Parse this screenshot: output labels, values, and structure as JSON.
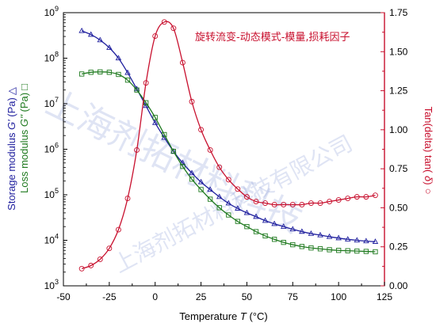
{
  "chart_data": {
    "type": "line",
    "annotation": "旋转流变-动态模式-模量,损耗因子",
    "xlabel": {
      "pre": "Temperature  ",
      "var": "T",
      "post": " (°C)"
    },
    "ylabel_left_storage": {
      "pre": "Storage modulus ",
      "var": "G'",
      "post": " (Pa)",
      "marker": "△"
    },
    "ylabel_left_loss": {
      "pre": "Loss modulus ",
      "var": "G''",
      "post": " (Pa)",
      "marker": "□"
    },
    "ylabel_right": {
      "pre": "Tan(delta) tan( ",
      "var": "δ",
      "post": ")",
      "marker": "○"
    },
    "xlim": [
      -50,
      125
    ],
    "ylim_left_log10": [
      3,
      9
    ],
    "ylim_right": [
      0,
      1.75
    ],
    "x_ticks": [
      "-50",
      "-25",
      "0",
      "25",
      "50",
      "75",
      "100",
      "125"
    ],
    "y_left_ticks": [
      {
        "base": "10",
        "exp": "3"
      },
      {
        "base": "10",
        "exp": "4"
      },
      {
        "base": "10",
        "exp": "5"
      },
      {
        "base": "10",
        "exp": "6"
      },
      {
        "base": "10",
        "exp": "7"
      },
      {
        "base": "10",
        "exp": "8"
      },
      {
        "base": "10",
        "exp": "9"
      }
    ],
    "y_right_ticks": [
      "0.00",
      "0.25",
      "0.50",
      "0.75",
      "1.00",
      "1.25",
      "1.50",
      "1.75"
    ],
    "grid": false,
    "colors": {
      "storage": "#1f1f9e",
      "loss": "#1f7a1f",
      "tan": "#c8102e",
      "axis_right": "#c8102e"
    },
    "series": [
      {
        "key": "storage",
        "axis": "left-log",
        "marker": "triangle",
        "x": [
          -40,
          -35,
          -30,
          -25,
          -20,
          -15,
          -10,
          -5,
          0,
          5,
          10,
          15,
          20,
          25,
          30,
          35,
          40,
          45,
          50,
          55,
          60,
          65,
          70,
          75,
          80,
          85,
          90,
          95,
          100,
          105,
          110,
          115,
          120
        ],
        "y": [
          398000000.0,
          330000000.0,
          250000000.0,
          170000000.0,
          100000000.0,
          48000000.0,
          21000000.0,
          9000000.0,
          3800000.0,
          1800000.0,
          900000.0,
          500000.0,
          300000.0,
          190000.0,
          130000.0,
          90000.0,
          65000.0,
          50000.0,
          40000.0,
          33000.0,
          27000.0,
          23000.0,
          20000.0,
          17500.0,
          15500.0,
          14000.0,
          13000.0,
          12000.0,
          11200.0,
          10500.0,
          10000.0,
          9600.0,
          9300.0
        ]
      },
      {
        "key": "loss",
        "axis": "left-log",
        "marker": "square",
        "x": [
          -40,
          -35,
          -30,
          -25,
          -20,
          -15,
          -10,
          -5,
          0,
          5,
          10,
          15,
          20,
          25,
          30,
          35,
          40,
          45,
          50,
          55,
          60,
          65,
          70,
          75,
          80,
          85,
          90,
          95,
          100,
          105,
          110,
          115,
          120
        ],
        "y": [
          45000000.0,
          49000000.0,
          50000000.0,
          49000000.0,
          44000000.0,
          33000000.0,
          20000000.0,
          10500000.0,
          5000000.0,
          2100000.0,
          900000.0,
          420000.0,
          220000.0,
          130000.0,
          80000.0,
          52000.0,
          36000.0,
          26000.0,
          20000.0,
          15500.0,
          12500.0,
          10500.0,
          9000.0,
          8000.0,
          7300.0,
          6800.0,
          6500.0,
          6200.0,
          6000.0,
          5900.0,
          5800.0,
          5700.0,
          5600.0
        ]
      },
      {
        "key": "tan",
        "axis": "right",
        "marker": "circle",
        "x": [
          -40,
          -35,
          -30,
          -25,
          -20,
          -15,
          -10,
          -5,
          0,
          5,
          10,
          15,
          20,
          25,
          30,
          35,
          40,
          45,
          50,
          55,
          60,
          65,
          70,
          75,
          80,
          85,
          90,
          95,
          100,
          105,
          110,
          115,
          120
        ],
        "y": [
          0.11,
          0.13,
          0.17,
          0.24,
          0.36,
          0.56,
          0.87,
          1.3,
          1.6,
          1.69,
          1.65,
          1.43,
          1.18,
          1.0,
          0.87,
          0.76,
          0.68,
          0.62,
          0.57,
          0.54,
          0.53,
          0.52,
          0.52,
          0.52,
          0.52,
          0.53,
          0.53,
          0.54,
          0.55,
          0.56,
          0.57,
          0.57,
          0.58
        ]
      }
    ]
  },
  "watermark": {
    "line1": "上海剂拓材料科技",
    "line2": "上海剂拓材料科技有限公司"
  }
}
